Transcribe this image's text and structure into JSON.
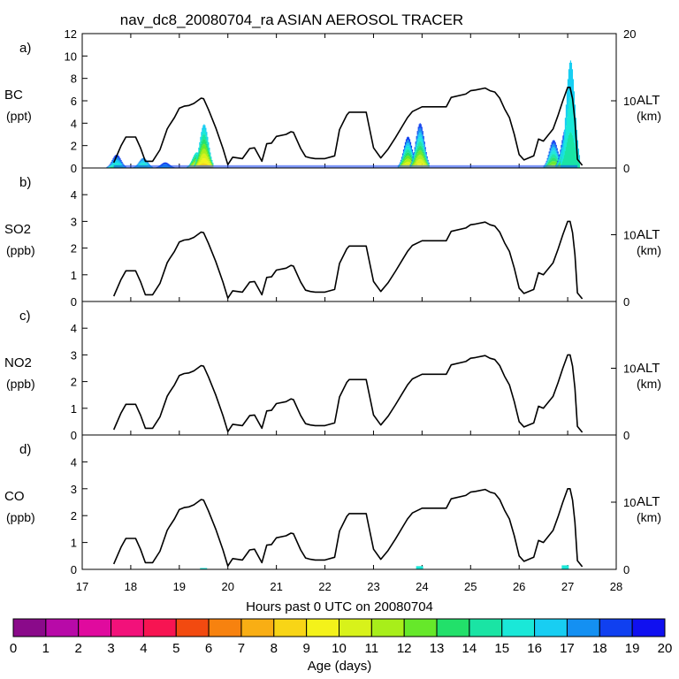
{
  "title": "nav_dc8_20080704_ra ASIAN AEROSOL TRACER",
  "xlabel": "Hours past 0 UTC on 20080704",
  "colorbar": {
    "label": "Age (days)",
    "ticks": [
      "0",
      "1",
      "2",
      "3",
      "4",
      "5",
      "6",
      "7",
      "8",
      "9",
      "10",
      "11",
      "12",
      "13",
      "14",
      "15",
      "16",
      "17",
      "18",
      "19",
      "20"
    ],
    "colors": [
      "#8a0a8a",
      "#b80aa8",
      "#e00a9e",
      "#f2117a",
      "#f71452",
      "#f24a10",
      "#f7820f",
      "#f9ae14",
      "#f8d516",
      "#f4f21a",
      "#d8f21a",
      "#a8ee1a",
      "#66e82a",
      "#22e06a",
      "#1ae4a4",
      "#1ae8d8",
      "#18cef2",
      "#1490f2",
      "#1040f0",
      "#1010f0",
      "#6a12f0"
    ]
  },
  "panels": [
    {
      "letter": "a)",
      "species": "BC",
      "unit": "(ppt)",
      "ylim": [
        0,
        12
      ],
      "yticks": [
        "0",
        "2",
        "4",
        "6",
        "8",
        "10",
        "12"
      ],
      "alt_label": "ALT",
      "alt_unit": "(km)",
      "alt_ticks": [
        "0",
        "10",
        "20"
      ]
    },
    {
      "letter": "b)",
      "species": "SO2",
      "unit": "(ppb)",
      "ylim": [
        0,
        5
      ],
      "yticks": [
        "0",
        "1",
        "2",
        "3",
        "4"
      ],
      "alt_label": "ALT",
      "alt_unit": "(km)",
      "alt_ticks": [
        "0",
        "10"
      ]
    },
    {
      "letter": "c)",
      "species": "NO2",
      "unit": "(ppb)",
      "ylim": [
        0,
        5
      ],
      "yticks": [
        "0",
        "1",
        "2",
        "3",
        "4"
      ],
      "alt_label": "ALT",
      "alt_unit": "(km)",
      "alt_ticks": [
        "0",
        "10"
      ]
    },
    {
      "letter": "d)",
      "species": "CO",
      "unit": "(ppb)",
      "ylim": [
        0,
        5
      ],
      "yticks": [
        "0",
        "1",
        "2",
        "3",
        "4"
      ],
      "alt_label": "ALT",
      "alt_unit": "(km)",
      "alt_ticks": [
        "0",
        "10"
      ]
    }
  ],
  "chart_data": {
    "type": "line",
    "title": "nav_dc8_20080704_ra ASIAN AEROSOL TRACER",
    "xlabel": "Hours past 0 UTC on 20080704",
    "x_ticks": [
      "17",
      "18",
      "19",
      "20",
      "21",
      "22",
      "23",
      "24",
      "25",
      "26",
      "27",
      "28"
    ],
    "xlim": [
      17,
      28
    ],
    "altitude_km": {
      "x": [
        17.65,
        17.8,
        17.9,
        18.1,
        18.2,
        18.3,
        18.45,
        18.6,
        18.75,
        18.8,
        18.9,
        19.0,
        19.1,
        19.2,
        19.3,
        19.45,
        19.5,
        19.6,
        19.75,
        19.9,
        20.0,
        20.1,
        20.3,
        20.45,
        20.55,
        20.7,
        20.8,
        20.9,
        21.0,
        21.2,
        21.3,
        21.35,
        21.5,
        21.6,
        21.7,
        21.8,
        22.0,
        22.2,
        22.3,
        22.45,
        22.5,
        22.6,
        22.85,
        22.9,
        23.0,
        23.15,
        23.3,
        23.45,
        23.6,
        23.7,
        23.8,
        24.0,
        24.4,
        24.5,
        24.6,
        24.9,
        25.0,
        25.1,
        25.3,
        25.4,
        25.5,
        25.6,
        25.7,
        25.8,
        25.9,
        26.0,
        26.1,
        26.3,
        26.4,
        26.5,
        26.7,
        26.8,
        26.9,
        27.0,
        27.05,
        27.1,
        27.15,
        27.2,
        27.3
      ],
      "y": [
        0.8,
        3.3,
        4.6,
        4.6,
        3.0,
        1.0,
        1.0,
        2.7,
        5.8,
        6.4,
        7.5,
        8.9,
        9.2,
        9.3,
        9.6,
        10.4,
        10.3,
        8.7,
        6.0,
        2.9,
        0.5,
        1.6,
        1.4,
        2.9,
        3.0,
        1.0,
        3.6,
        3.7,
        4.7,
        5.0,
        5.4,
        5.3,
        2.9,
        1.7,
        1.5,
        1.4,
        1.4,
        1.8,
        5.7,
        7.9,
        8.3,
        8.3,
        8.3,
        6.5,
        3.0,
        1.5,
        2.8,
        4.5,
        6.3,
        7.5,
        8.4,
        9.1,
        9.1,
        9.1,
        10.5,
        11.0,
        11.5,
        11.6,
        11.9,
        11.5,
        11.3,
        10.4,
        8.8,
        7.5,
        5.0,
        2.0,
        1.2,
        1.8,
        4.3,
        4.0,
        5.8,
        7.8,
        10.0,
        12.0,
        12.0,
        10.3,
        7.0,
        1.3,
        0.4
      ]
    },
    "bc_age_tracer": {
      "description": "Stacked BC contributions (ppt) colored by age in days",
      "peaks": [
        {
          "x": 17.7,
          "total": 1.2,
          "ages": [
            14,
            15,
            16,
            17,
            18
          ]
        },
        {
          "x": 18.25,
          "total": 0.9,
          "ages": [
            14,
            15,
            16,
            17
          ]
        },
        {
          "x": 18.7,
          "total": 0.5,
          "ages": [
            16,
            17,
            18
          ]
        },
        {
          "x": 19.35,
          "total": 1.4,
          "ages": [
            9,
            10,
            11,
            12,
            13,
            14,
            15
          ]
        },
        {
          "x": 19.5,
          "total": 3.9,
          "ages": [
            8,
            9,
            10,
            11,
            12,
            13,
            14,
            15,
            16
          ]
        },
        {
          "x": 23.7,
          "total": 2.8,
          "ages": [
            9,
            10,
            11,
            12,
            13,
            14,
            15,
            16,
            17,
            18
          ]
        },
        {
          "x": 23.95,
          "total": 4.0,
          "ages": [
            9,
            10,
            11,
            12,
            13,
            14,
            15,
            16,
            17,
            18
          ]
        },
        {
          "x": 26.7,
          "total": 2.5,
          "ages": [
            11,
            12,
            13,
            14,
            15,
            16,
            17,
            18
          ]
        },
        {
          "x": 26.95,
          "total": 3.5,
          "ages": [
            11,
            12,
            13,
            14,
            15,
            16,
            17,
            18
          ]
        },
        {
          "x": 27.05,
          "total": 9.6,
          "ages": [
            14,
            15,
            16
          ]
        }
      ]
    },
    "so2_ppb": "no visible tracer signal",
    "no2_ppb": "no visible tracer signal",
    "co_ppb": {
      "peaks": [
        {
          "x": 19.5,
          "total": 0.05
        },
        {
          "x": 23.95,
          "total": 0.12
        },
        {
          "x": 26.95,
          "total": 0.15
        }
      ]
    }
  }
}
